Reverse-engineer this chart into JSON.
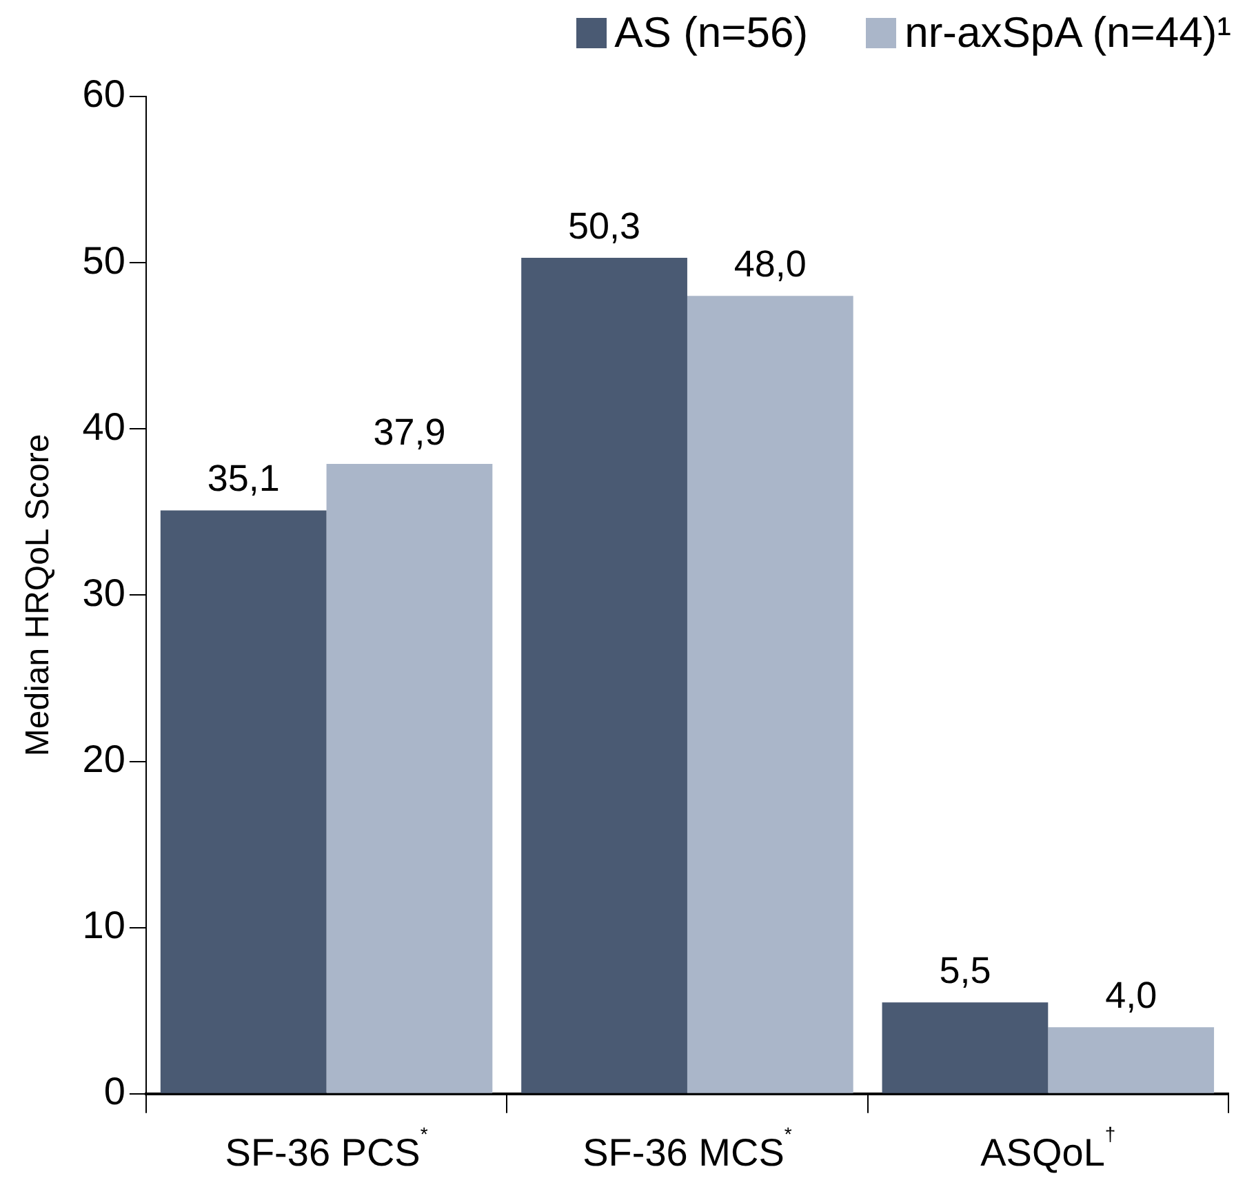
{
  "chart_data": {
    "type": "bar",
    "ylabel": "Median HRQoL Score",
    "categories": [
      "SF-36 PCS$^{*}$",
      "SF-36 MCS$^{*}$",
      "ASQoL$^{†}$"
    ],
    "series": [
      {
        "name": "AS (n=56)",
        "color": "#4a5a73",
        "values": [
          35.1,
          50.3,
          5.5
        ],
        "value_labels": [
          "35,1",
          "50,3",
          "5,5"
        ]
      },
      {
        "name": "nr-axSpA (n=44)¹",
        "color": "#aab6c9",
        "values": [
          37.9,
          48.0,
          4.0
        ],
        "value_labels": [
          "37,9",
          "48,0",
          "4,0"
        ]
      }
    ],
    "ylim": [
      0,
      60
    ],
    "yticks": [
      0,
      10,
      20,
      30,
      40,
      50,
      60
    ],
    "grid": false,
    "legend": "top right"
  }
}
